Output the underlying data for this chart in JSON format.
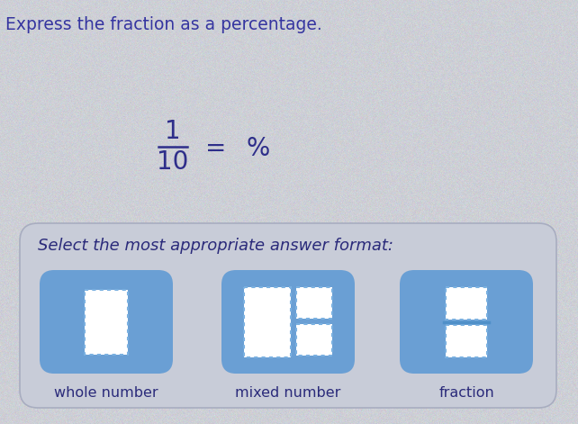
{
  "title": "Express the fraction as a percentage.",
  "title_color": "#3535a0",
  "title_fontsize": 13.5,
  "fraction_numerator": "1",
  "fraction_denominator": "10",
  "equals_symbol": "=",
  "percent_symbol": "%",
  "fraction_color": "#2e2e8a",
  "bg_color": "#cfd1d8",
  "box_bg_color": "#c5c8d5",
  "box_border_color": "#b0b5c8",
  "button_bg_color": "#6a9fd4",
  "button_border_color": "#4a80c0",
  "dashed_box_color": "#7ab0e0",
  "white_box_color": "#ffffff",
  "select_text": "Select the most appropriate answer format:",
  "select_color": "#2a2a7a",
  "select_fontsize": 13,
  "labels": [
    "whole number",
    "mixed number",
    "fraction"
  ],
  "label_color": "#2a2a7a",
  "label_fontsize": 11.5,
  "fig_w": 6.42,
  "fig_h": 4.71,
  "dpi": 100
}
